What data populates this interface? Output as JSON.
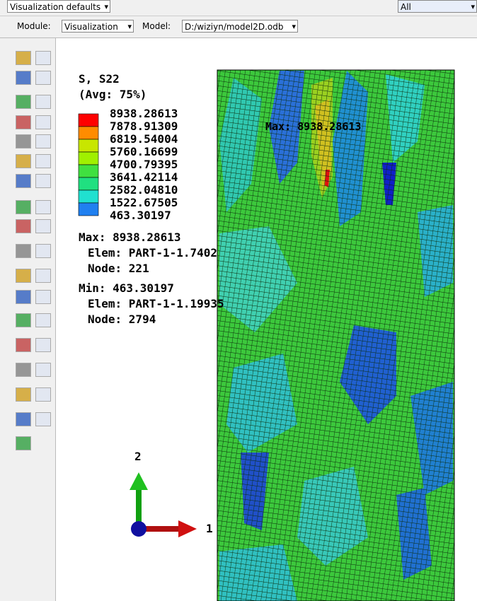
{
  "toolbar": {
    "style": "Visualization defaults",
    "filter": "All"
  },
  "context_bar": {
    "module_label": "Module:",
    "module": "Visualization",
    "model_label": "Model:",
    "model": "D:/wiziyn/model2D.odb"
  },
  "legend": {
    "title": "S, S22",
    "subtitle": "(Avg: 75%)",
    "levels": [
      "8938.28613",
      "7878.91309",
      "6819.54004",
      "5760.16699",
      "4700.79395",
      "3641.42114",
      "2582.04810",
      "1522.67505",
      "463.30197"
    ]
  },
  "info": {
    "max": "Max: 8938.28613",
    "max_elem": "Elem: PART-1-1.7402",
    "max_node": "Node: 221",
    "min": "Min: 463.30197",
    "min_elem": "Elem: PART-1-1.19935",
    "min_node": "Node: 2794"
  },
  "viewport": {
    "max_annotation": "Max: 8938.28613"
  },
  "triad": {
    "axis_y": "2",
    "axis_x": "1"
  }
}
